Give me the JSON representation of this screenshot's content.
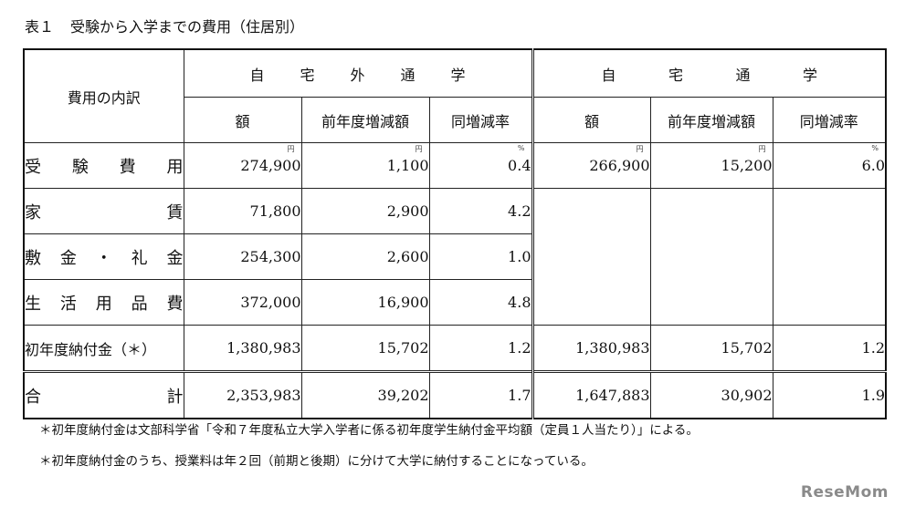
{
  "title": {
    "label": "表１",
    "text": "受験から入学までの費用（住居別）"
  },
  "header": {
    "item_col": "費用の内訳",
    "group_away": [
      "自",
      "宅",
      "外",
      "通",
      "学"
    ],
    "group_home": [
      "自",
      "宅",
      "通",
      "学"
    ],
    "sub_cols": [
      "額",
      "前年度増減額",
      "同増減率",
      "額",
      "前年度増減額",
      "同増減率"
    ]
  },
  "units": {
    "yen": "円",
    "pct": "%"
  },
  "rows": [
    {
      "label_chars": [
        "受",
        "験",
        "費",
        "用"
      ],
      "cells": [
        "274,900",
        "1,100",
        "0.4",
        "266,900",
        "15,200",
        "6.0"
      ]
    },
    {
      "label_chars": [
        "家",
        "賃"
      ],
      "cells": [
        "71,800",
        "2,900",
        "4.2"
      ]
    },
    {
      "label_chars": [
        "敷",
        "金",
        "・",
        "礼",
        "金"
      ],
      "cells": [
        "254,300",
        "2,600",
        "1.0"
      ]
    },
    {
      "label_chars": [
        "生",
        "活",
        "用",
        "品",
        "費"
      ],
      "cells": [
        "372,000",
        "16,900",
        "4.8"
      ]
    },
    {
      "label": "初年度納付金（＊）",
      "cells": [
        "1,380,983",
        "15,702",
        "1.2",
        "1,380,983",
        "15,702",
        "1.2"
      ]
    },
    {
      "label_chars": [
        "合",
        "計"
      ],
      "cells": [
        "2,353,983",
        "39,202",
        "1.7",
        "1,647,883",
        "30,902",
        "1.9"
      ]
    }
  ],
  "notes": [
    "＊初年度納付金は文部科学省「令和７年度私立大学入学者に係る初年度学生納付金平均額（定員１人当たり）」による。",
    "＊初年度納付金のうち、授業料は年２回（前期と後期）に分けて大学に納付することになっている。"
  ],
  "watermark": "ReseMom"
}
